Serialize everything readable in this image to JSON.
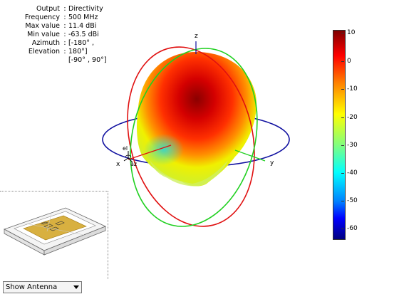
{
  "info": {
    "rows": [
      {
        "label": "Output",
        "value": "Directivity"
      },
      {
        "label": "Frequency",
        "value": "500 MHz"
      },
      {
        "label": "Max value",
        "value": "11.4 dBi"
      },
      {
        "label": "Min value",
        "value": "-63.5 dBi"
      },
      {
        "label": "Azimuth",
        "value": "[-180° ,"
      },
      {
        "label": "Elevation",
        "value": "180°]"
      }
    ],
    "extra": "[-90° , 90°]"
  },
  "axes": {
    "z": "z",
    "x": "x",
    "y": "y",
    "el": "el",
    "az": "az"
  },
  "colorbar": {
    "ticks": [
      "10",
      "0",
      "-10",
      "-20",
      "-30",
      "-40",
      "-50",
      "-60"
    ],
    "colors": [
      "#7f0000",
      "#ff0000",
      "#ff8000",
      "#ffff00",
      "#80ff80",
      "#00ffff",
      "#0080ff",
      "#0000ff",
      "#000080"
    ]
  },
  "dropdown": {
    "selected": "Show Antenna"
  },
  "colors": {
    "red_ring": "#e01010",
    "green_ring": "#20d020",
    "blue_ring": "#1010a0"
  }
}
